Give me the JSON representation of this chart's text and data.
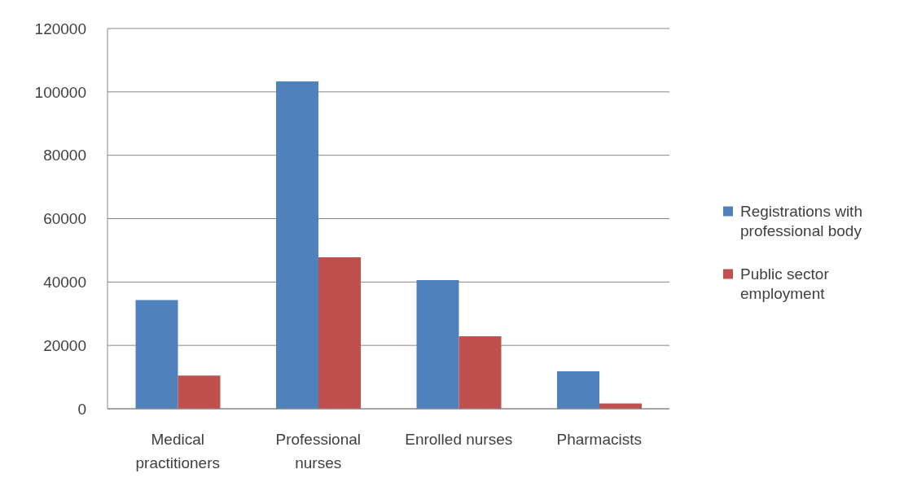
{
  "chart_data": {
    "type": "bar",
    "categories": [
      "Medical practitioners",
      "Professional nurses",
      "Enrolled nurses",
      "Pharmacists"
    ],
    "series": [
      {
        "name": "Registrations with professional body",
        "color": "#4f81bd",
        "values": [
          34300,
          103300,
          40600,
          11800
        ]
      },
      {
        "name": "Public sector employment",
        "color": "#c0504d",
        "values": [
          10500,
          47800,
          22900,
          1700
        ]
      }
    ],
    "ylim": [
      0,
      120000
    ],
    "yticks": [
      0,
      20000,
      40000,
      60000,
      80000,
      100000,
      120000
    ],
    "grid": "y",
    "legend": "right"
  }
}
